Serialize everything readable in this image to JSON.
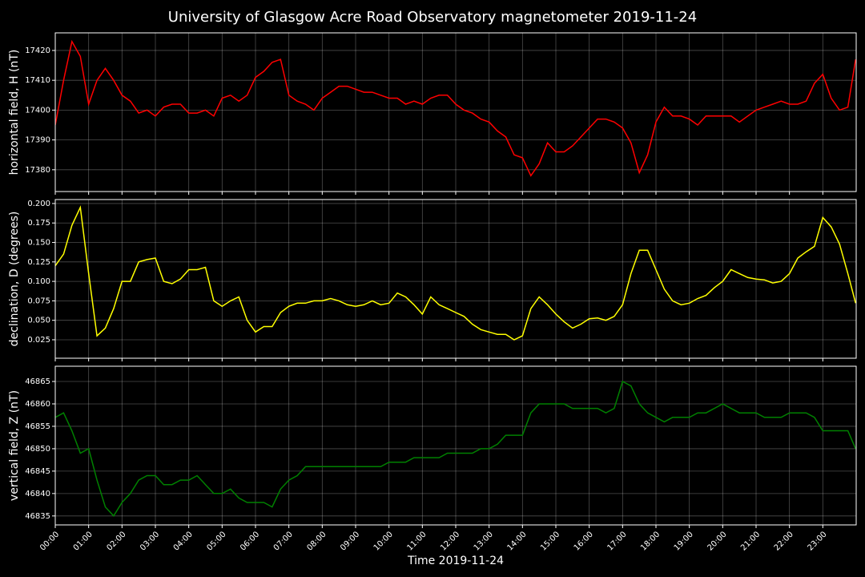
{
  "chart_data": {
    "type": "line",
    "title": "University of Glasgow Acre Road Observatory magnetometer 2019-11-24",
    "xlabel": "Time 2019-11-24",
    "grid": true,
    "xlim": [
      "00:00",
      "24:00"
    ],
    "xticks": [
      "00:00",
      "01:00",
      "02:00",
      "03:00",
      "04:00",
      "05:00",
      "06:00",
      "07:00",
      "08:00",
      "09:00",
      "10:00",
      "11:00",
      "12:00",
      "13:00",
      "14:00",
      "15:00",
      "16:00",
      "17:00",
      "18:00",
      "19:00",
      "20:00",
      "21:00",
      "22:00",
      "23:00"
    ],
    "x": [
      "00:00",
      "00:15",
      "00:30",
      "00:45",
      "01:00",
      "01:15",
      "01:30",
      "01:45",
      "02:00",
      "02:15",
      "02:30",
      "02:45",
      "03:00",
      "03:15",
      "03:30",
      "03:45",
      "04:00",
      "04:15",
      "04:30",
      "04:45",
      "05:00",
      "05:15",
      "05:30",
      "05:45",
      "06:00",
      "06:15",
      "06:30",
      "06:45",
      "07:00",
      "07:15",
      "07:30",
      "07:45",
      "08:00",
      "08:15",
      "08:30",
      "08:45",
      "09:00",
      "09:15",
      "09:30",
      "09:45",
      "10:00",
      "10:15",
      "10:30",
      "10:45",
      "11:00",
      "11:15",
      "11:30",
      "11:45",
      "12:00",
      "12:15",
      "12:30",
      "12:45",
      "13:00",
      "13:15",
      "13:30",
      "13:45",
      "14:00",
      "14:15",
      "14:30",
      "14:45",
      "15:00",
      "15:15",
      "15:30",
      "15:45",
      "16:00",
      "16:15",
      "16:30",
      "16:45",
      "17:00",
      "17:15",
      "17:30",
      "17:45",
      "18:00",
      "18:15",
      "18:30",
      "18:45",
      "19:00",
      "19:15",
      "19:30",
      "19:45",
      "20:00",
      "20:15",
      "20:30",
      "20:45",
      "21:00",
      "21:15",
      "21:30",
      "21:45",
      "22:00",
      "22:15",
      "22:30",
      "22:45",
      "23:00",
      "23:15",
      "23:30",
      "23:45",
      "23:59"
    ],
    "panels": [
      {
        "ylabel": "horizontal field, H (nT)",
        "color": "#ff0000",
        "ylim": [
          17372.7,
          17425.9
        ],
        "yticks": [
          17380,
          17390,
          17400,
          17410,
          17420
        ],
        "values": [
          17395,
          17410,
          17423,
          17418,
          17402,
          17410,
          17414,
          17410,
          17405,
          17403,
          17399,
          17400,
          17398,
          17401,
          17402,
          17402,
          17399,
          17399,
          17400,
          17398,
          17404,
          17405,
          17403,
          17405,
          17411,
          17413,
          17416,
          17417,
          17405,
          17403,
          17402,
          17400,
          17404,
          17406,
          17408,
          17408,
          17407,
          17406,
          17406,
          17405,
          17404,
          17404,
          17402,
          17403,
          17402,
          17404,
          17405,
          17405,
          17402,
          17400,
          17399,
          17397,
          17396,
          17393,
          17391,
          17385,
          17384,
          17378,
          17382,
          17389,
          17386,
          17386,
          17388,
          17391,
          17394,
          17397,
          17397,
          17396,
          17394,
          17389,
          17379,
          17385,
          17396,
          17401,
          17398,
          17398,
          17397,
          17395,
          17398,
          17398,
          17398,
          17398,
          17396,
          17398,
          17400,
          17401,
          17402,
          17403,
          17402,
          17402,
          17403,
          17409,
          17412,
          17404,
          17400,
          17401,
          17417
        ]
      },
      {
        "ylabel": "declination, D (degrees)",
        "color": "#ffff00",
        "ylim": [
          0.0013,
          0.2051
        ],
        "yticks": [
          0.025,
          {
            "value": 0.05,
            "label": "0.050"
          },
          0.075,
          {
            "value": 0.1,
            "label": "0.100"
          },
          0.125,
          {
            "value": 0.15,
            "label": "0.150"
          },
          0.175,
          {
            "value": 0.2,
            "label": "0.200"
          }
        ],
        "values": [
          0.12,
          0.135,
          0.172,
          0.195,
          0.11,
          0.03,
          0.04,
          0.065,
          0.1,
          0.1,
          0.125,
          0.128,
          0.13,
          0.1,
          0.097,
          0.103,
          0.115,
          0.115,
          0.118,
          0.075,
          0.068,
          0.075,
          0.08,
          0.05,
          0.035,
          0.042,
          0.042,
          0.06,
          0.068,
          0.072,
          0.072,
          0.075,
          0.075,
          0.078,
          0.075,
          0.07,
          0.068,
          0.07,
          0.075,
          0.07,
          0.072,
          0.085,
          0.08,
          0.07,
          0.058,
          0.08,
          0.07,
          0.065,
          0.06,
          0.055,
          0.045,
          0.038,
          0.035,
          0.032,
          0.032,
          0.025,
          0.03,
          0.065,
          0.08,
          0.07,
          0.058,
          0.048,
          0.04,
          0.045,
          0.052,
          0.053,
          0.05,
          0.055,
          0.07,
          0.11,
          0.14,
          0.14,
          0.115,
          0.09,
          0.075,
          0.07,
          0.072,
          0.078,
          0.082,
          0.092,
          0.1,
          0.115,
          0.11,
          0.105,
          0.103,
          0.102,
          0.098,
          0.1,
          0.11,
          0.13,
          0.138,
          0.145,
          0.182,
          0.17,
          0.148,
          0.11,
          0.072
        ]
      },
      {
        "ylabel": "vertical field, Z (nT)",
        "color": "#008000",
        "ylim": [
          46833.0,
          46868.4
        ],
        "yticks": [
          46835,
          46840,
          46845,
          46850,
          46855,
          46860,
          46865
        ],
        "values": [
          46857,
          46858,
          46854,
          46849,
          46850,
          46843,
          46837,
          46835,
          46838,
          46840,
          46843,
          46844,
          46844,
          46842,
          46842,
          46843,
          46843,
          46844,
          46842,
          46840,
          46840,
          46841,
          46839,
          46838,
          46838,
          46838,
          46837,
          46841,
          46843,
          46844,
          46846,
          46846,
          46846,
          46846,
          46846,
          46846,
          46846,
          46846,
          46846,
          46846,
          46847,
          46847,
          46847,
          46848,
          46848,
          46848,
          46848,
          46849,
          46849,
          46849,
          46849,
          46850,
          46850,
          46851,
          46853,
          46853,
          46853,
          46858,
          46860,
          46860,
          46860,
          46860,
          46859,
          46859,
          46859,
          46859,
          46858,
          46859,
          46865,
          46864,
          46860,
          46858,
          46857,
          46856,
          46857,
          46857,
          46857,
          46858,
          46858,
          46859,
          46860,
          46859,
          46858,
          46858,
          46858,
          46857,
          46857,
          46857,
          46858,
          46858,
          46858,
          46857,
          46854,
          46854,
          46854,
          46854,
          46850
        ]
      }
    ]
  }
}
